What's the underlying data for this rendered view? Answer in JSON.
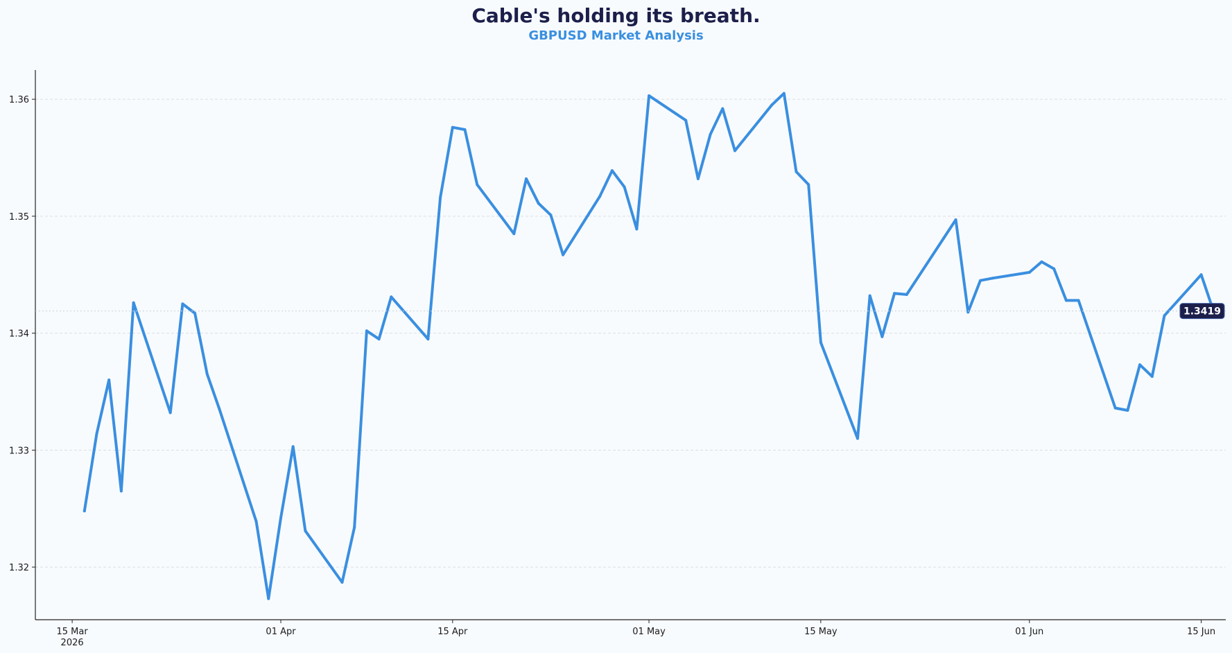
{
  "title": "Cable's holding its breath.",
  "subtitle": "GBPUSD Market Analysis",
  "colors": {
    "line": "#3a8fe0",
    "title": "#1c1f4a",
    "subtitle": "#3a8fe0",
    "badge_bg": "#1c1f4a",
    "grid": "#d9dde3",
    "background": "#f8fbfe"
  },
  "chart_data": {
    "type": "line",
    "title": "Cable's holding its breath.",
    "subtitle": "GBPUSD Market Analysis",
    "xlabel": "",
    "ylabel": "",
    "grid": "horizontal dashed",
    "xlim": [
      "2026-03-12",
      "2026-06-17"
    ],
    "ylim": [
      1.3155,
      1.3625
    ],
    "y_ticks": [
      1.32,
      1.33,
      1.34,
      1.35,
      1.36
    ],
    "y_tick_labels": [
      "1.32",
      "1.33",
      "1.34",
      "1.35",
      "1.36"
    ],
    "x_ticks": [
      {
        "date": "2026-03-15",
        "label": "15 Mar",
        "sublabel": "2026"
      },
      {
        "date": "2026-04-01",
        "label": "01 Apr",
        "sublabel": ""
      },
      {
        "date": "2026-04-15",
        "label": "15 Apr",
        "sublabel": ""
      },
      {
        "date": "2026-05-01",
        "label": "01 May",
        "sublabel": ""
      },
      {
        "date": "2026-05-15",
        "label": "15 May",
        "sublabel": ""
      },
      {
        "date": "2026-06-01",
        "label": "01 Jun",
        "sublabel": ""
      },
      {
        "date": "2026-06-15",
        "label": "15 Jun",
        "sublabel": ""
      }
    ],
    "last_value_label": "1.3419",
    "last_value": 1.3419,
    "series": [
      {
        "x": [
          "2026-03-16",
          "2026-03-17",
          "2026-03-18",
          "2026-03-19",
          "2026-03-20",
          "2026-03-23",
          "2026-03-24",
          "2026-03-25",
          "2026-03-26",
          "2026-03-27",
          "2026-03-30",
          "2026-03-31",
          "2026-04-01",
          "2026-04-02",
          "2026-04-03",
          "2026-04-06",
          "2026-04-07",
          "2026-04-08",
          "2026-04-09",
          "2026-04-10",
          "2026-04-13",
          "2026-04-14",
          "2026-04-15",
          "2026-04-16",
          "2026-04-17",
          "2026-04-20",
          "2026-04-21",
          "2026-04-22",
          "2026-04-23",
          "2026-04-24",
          "2026-04-27",
          "2026-04-28",
          "2026-04-29",
          "2026-04-30",
          "2026-05-01",
          "2026-05-04",
          "2026-05-05",
          "2026-05-06",
          "2026-05-07",
          "2026-05-08",
          "2026-05-11",
          "2026-05-12",
          "2026-05-13",
          "2026-05-14",
          "2026-05-15",
          "2026-05-18",
          "2026-05-19",
          "2026-05-20",
          "2026-05-21",
          "2026-05-22",
          "2026-05-25",
          "2026-05-26",
          "2026-05-27",
          "2026-05-28",
          "2026-05-29",
          "2026-06-01",
          "2026-06-02",
          "2026-06-03",
          "2026-06-04",
          "2026-06-05",
          "2026-06-08",
          "2026-06-09",
          "2026-06-10",
          "2026-06-11",
          "2026-06-12",
          "2026-06-15",
          "2026-06-16"
        ],
        "y": [
          1.3248,
          1.3314,
          1.336,
          1.3265,
          1.3426,
          1.3332,
          1.3425,
          1.3417,
          1.3365,
          1.3335,
          1.3239,
          1.3173,
          1.3242,
          1.3303,
          1.3231,
          1.3187,
          1.3234,
          1.3402,
          1.3395,
          1.3431,
          1.3395,
          1.3516,
          1.3576,
          1.3574,
          1.3527,
          1.3485,
          1.3532,
          1.3511,
          1.3501,
          1.3467,
          1.3517,
          1.3539,
          1.3525,
          1.3489,
          1.3603,
          1.3582,
          1.3532,
          1.357,
          1.3592,
          1.3556,
          1.3595,
          1.3605,
          1.3538,
          1.3527,
          1.3392,
          1.331,
          1.3432,
          1.3397,
          1.3434,
          1.3433,
          1.3481,
          1.3497,
          1.3418,
          1.3445,
          1.3447,
          1.3452,
          1.3461,
          1.3455,
          1.3428,
          1.3428,
          1.3336,
          1.3334,
          1.3373,
          1.3363,
          1.3415,
          1.345,
          1.3419
        ]
      }
    ]
  }
}
